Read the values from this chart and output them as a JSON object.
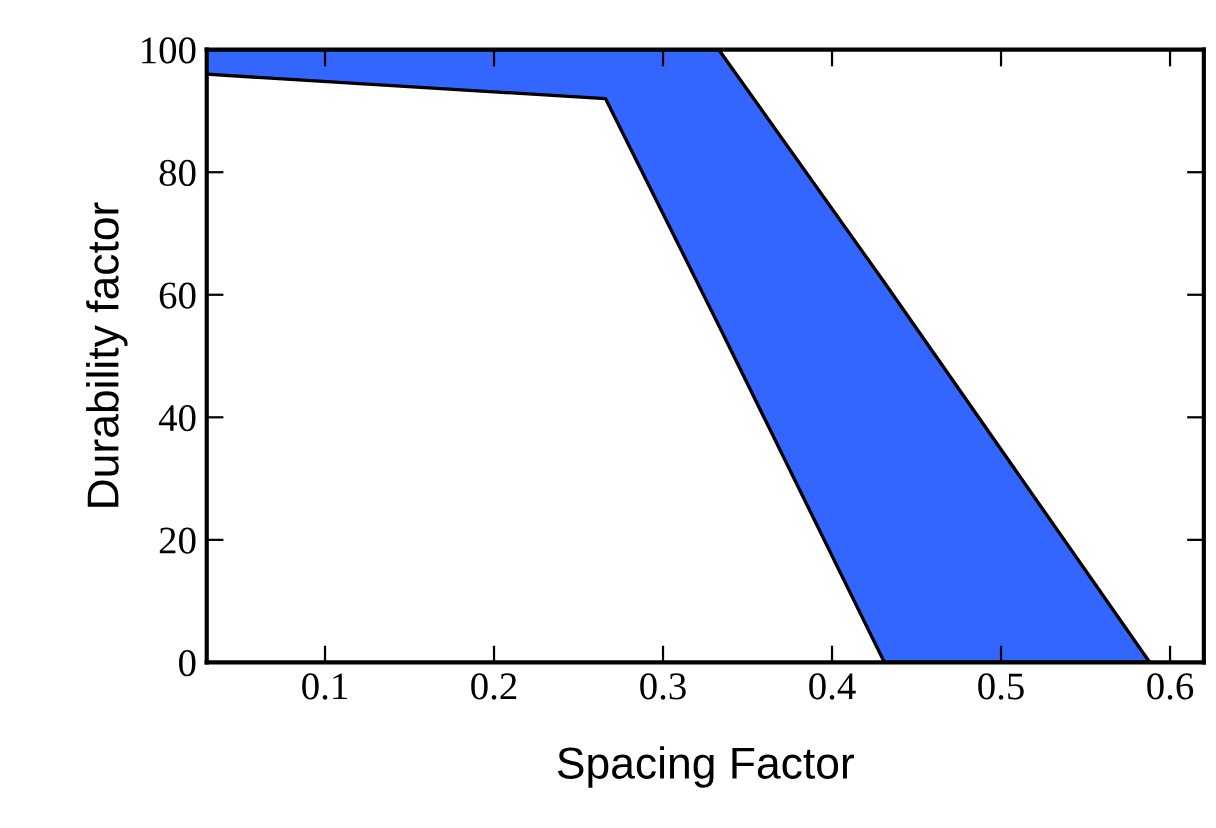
{
  "chart_data": {
    "type": "area",
    "stacked": true,
    "xlabel": "Spacing Factor",
    "ylabel": "Durability factor",
    "x": [
      0.03,
      0.266,
      0.333,
      0.431,
      0.588
    ],
    "series": [
      {
        "color": "#ffffff",
        "values": [
          96,
          92,
          55,
          0,
          0
        ]
      },
      {
        "color": "#3366ff",
        "values": [
          4,
          8,
          45,
          62,
          0
        ]
      }
    ],
    "xlim": [
      0.03,
      0.62
    ],
    "xticks": [
      0.1,
      0.2,
      0.3,
      0.4,
      0.5,
      0.6
    ],
    "ylim": [
      0,
      100
    ],
    "yticks": [
      0,
      20,
      40,
      60,
      80,
      100
    ],
    "grid": false,
    "legend": false
  }
}
